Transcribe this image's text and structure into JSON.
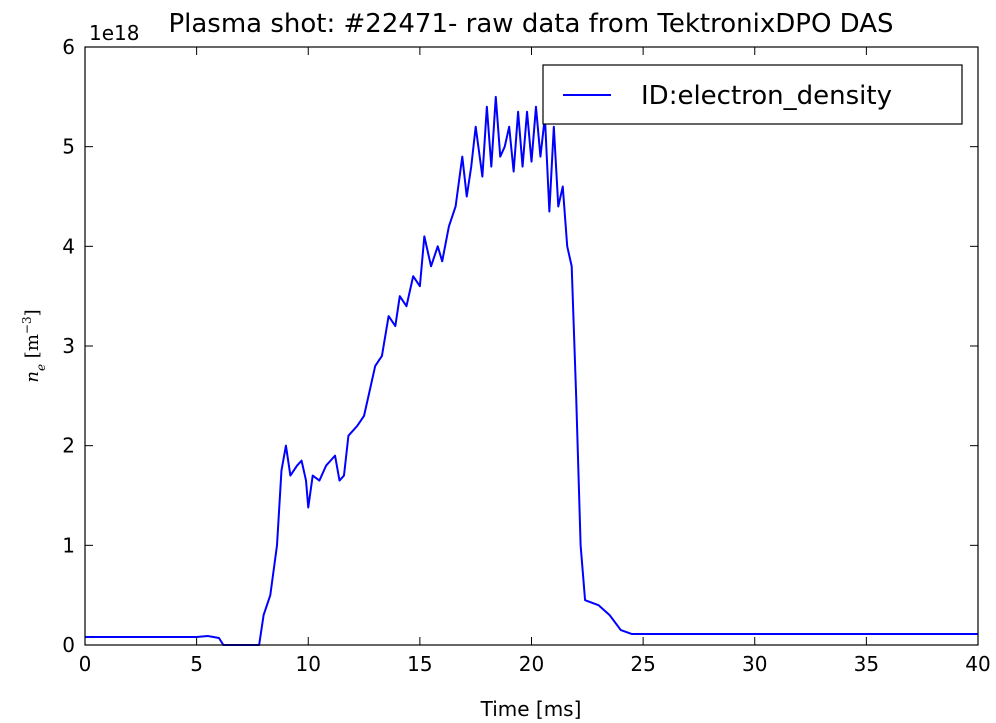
{
  "chart_data": {
    "type": "line",
    "title": "Plasma shot: #22471- raw data from TektronixDPO DAS",
    "xlabel": "Time [ms]",
    "ylabel_parts": [
      "n",
      "e",
      " [m",
      "−3",
      "]"
    ],
    "y_offset_label": "1e18",
    "x": [
      0,
      5,
      5.5,
      6,
      6.2,
      7.8,
      8.0,
      8.3,
      8.6,
      8.8,
      9.0,
      9.2,
      9.5,
      9.7,
      9.9,
      10.0,
      10.2,
      10.5,
      10.8,
      11.0,
      11.2,
      11.4,
      11.6,
      11.8,
      12.2,
      12.5,
      12.8,
      13.0,
      13.3,
      13.6,
      13.9,
      14.1,
      14.4,
      14.7,
      15.0,
      15.2,
      15.5,
      15.8,
      16.0,
      16.3,
      16.6,
      16.9,
      17.1,
      17.3,
      17.5,
      17.8,
      18.0,
      18.2,
      18.4,
      18.6,
      18.8,
      19.0,
      19.2,
      19.4,
      19.6,
      19.8,
      20.0,
      20.2,
      20.4,
      20.6,
      20.8,
      21.0,
      21.2,
      21.4,
      21.6,
      21.8,
      22.0,
      22.2,
      22.4,
      23.0,
      23.5,
      24.0,
      24.5,
      25,
      40
    ],
    "series": [
      {
        "name": "ID:electron_density",
        "color": "#0000ff",
        "values": [
          0.08,
          0.08,
          0.09,
          0.07,
          0.0,
          0.0,
          0.3,
          0.5,
          1.0,
          1.75,
          2.0,
          1.7,
          1.8,
          1.85,
          1.65,
          1.38,
          1.7,
          1.65,
          1.8,
          1.85,
          1.9,
          1.65,
          1.7,
          2.1,
          2.2,
          2.3,
          2.6,
          2.8,
          2.9,
          3.3,
          3.2,
          3.5,
          3.4,
          3.7,
          3.6,
          4.1,
          3.8,
          4.0,
          3.85,
          4.2,
          4.4,
          4.9,
          4.5,
          4.8,
          5.2,
          4.7,
          5.4,
          4.8,
          5.5,
          4.9,
          5.0,
          5.2,
          4.75,
          5.35,
          4.8,
          5.35,
          4.85,
          5.4,
          4.9,
          5.3,
          4.35,
          5.2,
          4.4,
          4.6,
          4.0,
          3.8,
          2.5,
          1.0,
          0.45,
          0.4,
          0.3,
          0.15,
          0.11,
          0.11,
          0.11
        ]
      }
    ],
    "xlim": [
      0,
      40
    ],
    "xticks": [
      0,
      5,
      10,
      15,
      20,
      25,
      30,
      35,
      40
    ],
    "ylim": [
      0,
      6
    ],
    "yticks": [
      0,
      1,
      2,
      3,
      4,
      5,
      6
    ],
    "grid": false,
    "legend": "upper right"
  }
}
